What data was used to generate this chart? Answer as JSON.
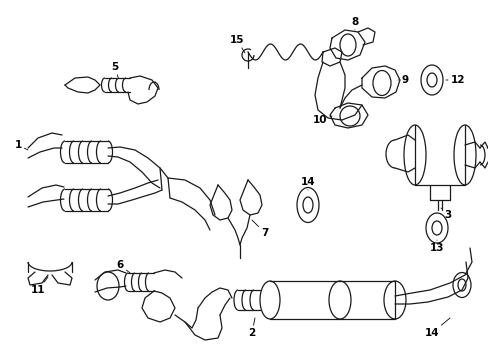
{
  "background_color": "#ffffff",
  "line_color": "#1a1a1a",
  "line_width": 0.9,
  "fig_width": 4.89,
  "fig_height": 3.6,
  "dpi": 100,
  "components": {
    "label_fontsize": 7.5,
    "label_fontweight": "bold"
  }
}
